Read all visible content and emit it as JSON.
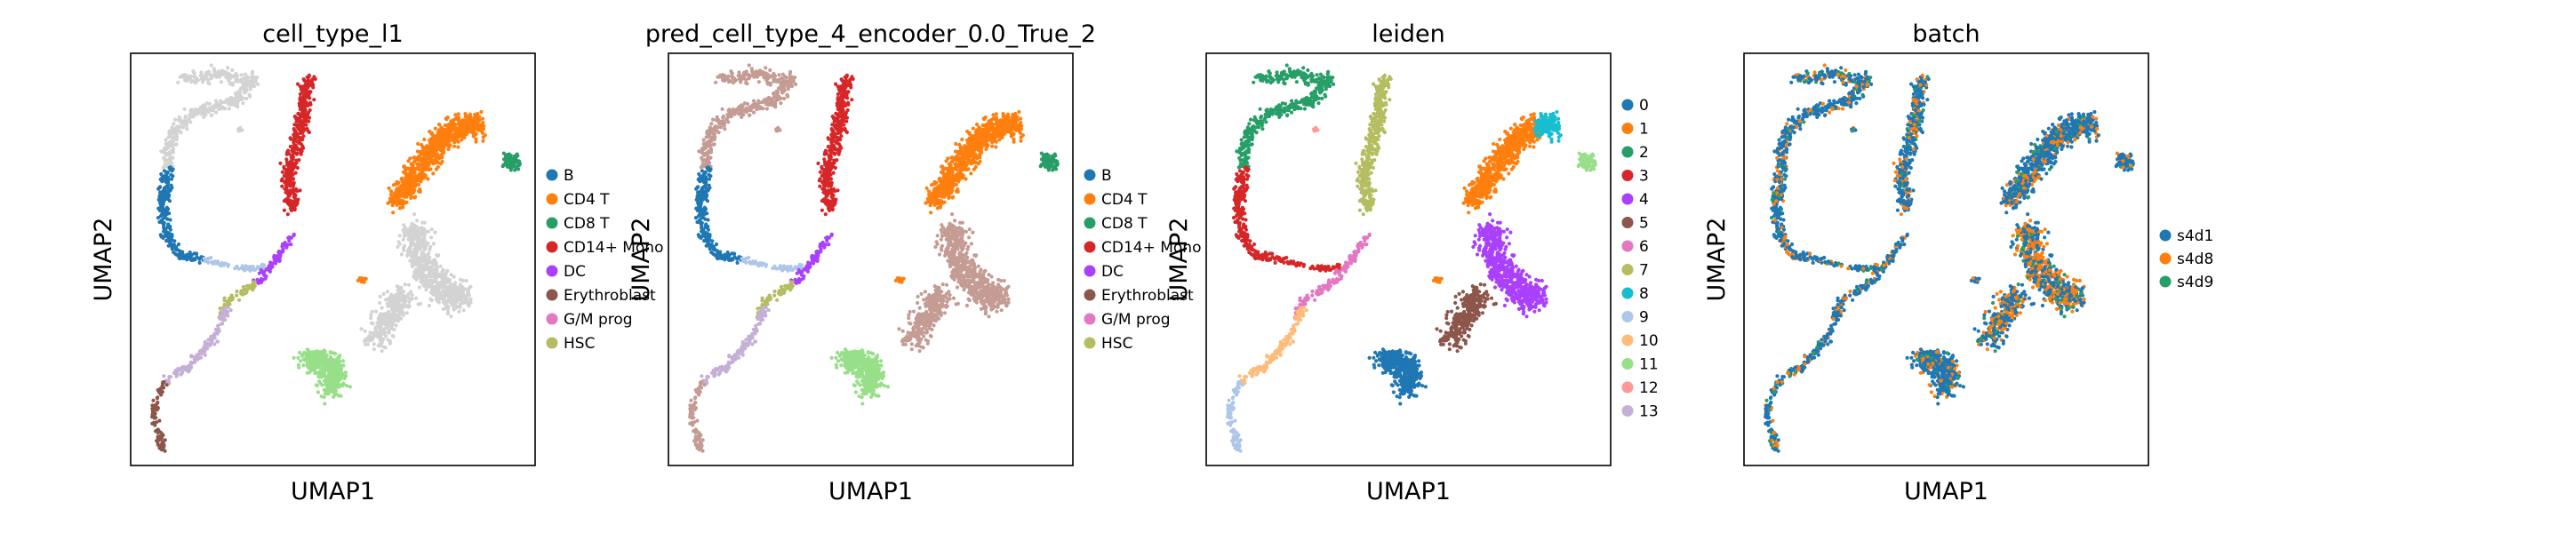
{
  "chart_data": [
    {
      "type": "scatter",
      "title": "cell_type_l1",
      "xlabel": "UMAP1",
      "ylabel": "UMAP2",
      "legend": {
        "placement": "right",
        "entries": [
          {
            "label": "B",
            "color": "#1f77b4"
          },
          {
            "label": "CD4 T",
            "color": "#ff7f0e"
          },
          {
            "label": "CD8 T",
            "color": "#279e68"
          },
          {
            "label": "CD14+ Mono",
            "color": "#d62728"
          },
          {
            "label": "DC",
            "color": "#aa40fc"
          },
          {
            "label": "Erythroblast",
            "color": "#8c564b"
          },
          {
            "label": "G/M prog",
            "color": "#e377c2"
          },
          {
            "label": "HSC",
            "color": "#b5bd61"
          }
        ]
      },
      "unlabeled_color": "#d3d3d3",
      "ticks": false,
      "grid": false
    },
    {
      "type": "scatter",
      "title": "pred_cell_type_4_encoder_0.0_True_2",
      "xlabel": "UMAP1",
      "ylabel": "UMAP2",
      "legend": {
        "placement": "right",
        "entries": [
          {
            "label": "B",
            "color": "#1f77b4"
          },
          {
            "label": "CD4 T",
            "color": "#ff7f0e"
          },
          {
            "label": "CD8 T",
            "color": "#279e68"
          },
          {
            "label": "CD14+ Mono",
            "color": "#d62728"
          },
          {
            "label": "DC",
            "color": "#aa40fc"
          },
          {
            "label": "Erythroblast",
            "color": "#8c564b"
          },
          {
            "label": "G/M prog",
            "color": "#e377c2"
          },
          {
            "label": "HSC",
            "color": "#b5bd61"
          }
        ]
      },
      "ticks": false,
      "grid": false
    },
    {
      "type": "scatter",
      "title": "leiden",
      "xlabel": "UMAP1",
      "ylabel": "UMAP2",
      "legend": {
        "placement": "right",
        "entries": [
          {
            "label": "0",
            "color": "#1f77b4"
          },
          {
            "label": "1",
            "color": "#ff7f0e"
          },
          {
            "label": "2",
            "color": "#279e68"
          },
          {
            "label": "3",
            "color": "#d62728"
          },
          {
            "label": "4",
            "color": "#aa40fc"
          },
          {
            "label": "5",
            "color": "#8c564b"
          },
          {
            "label": "6",
            "color": "#e377c2"
          },
          {
            "label": "7",
            "color": "#b5bd61"
          },
          {
            "label": "8",
            "color": "#17becf"
          },
          {
            "label": "9",
            "color": "#aec7e8"
          },
          {
            "label": "10",
            "color": "#ffbb78"
          },
          {
            "label": "11",
            "color": "#98df8a"
          },
          {
            "label": "12",
            "color": "#ff9896"
          },
          {
            "label": "13",
            "color": "#c5b0d5"
          }
        ]
      },
      "ticks": false,
      "grid": false
    },
    {
      "type": "scatter",
      "title": "batch",
      "xlabel": "UMAP1",
      "ylabel": "UMAP2",
      "legend": {
        "placement": "right",
        "entries": [
          {
            "label": "s4d1",
            "color": "#1f77b4"
          },
          {
            "label": "s4d8",
            "color": "#ff7f0e"
          },
          {
            "label": "s4d9",
            "color": "#279e68"
          }
        ]
      },
      "ticks": false,
      "grid": false
    }
  ]
}
